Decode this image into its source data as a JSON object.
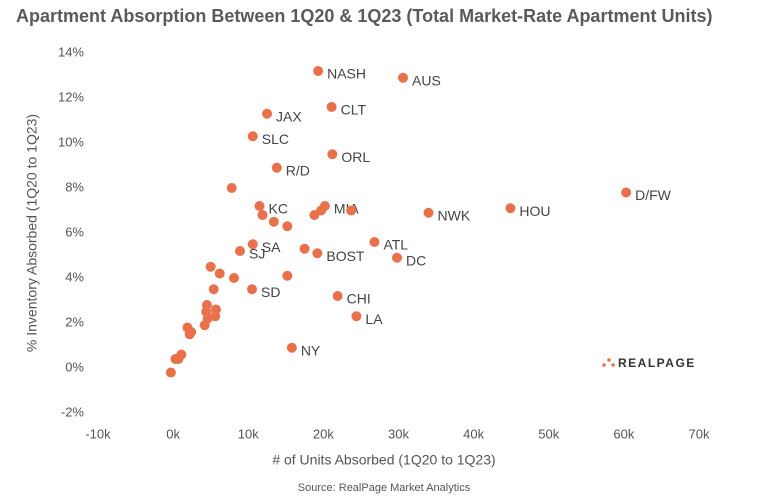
{
  "chart_data": {
    "type": "scatter",
    "title": "Apartment Absorption Between 1Q20 & 1Q23 (Total Market-Rate Apartment Units)",
    "x_label": "# of Units Absorbed (1Q20 to 1Q23)",
    "y_label": "% Inventory Absorbed (1Q20 to 1Q23)",
    "source": "Source: RealPage Market Analytics",
    "logo": "REALPAGE",
    "color": "#e8704a",
    "xlim": [
      -10000,
      70000
    ],
    "xticks": [
      {
        "value": -10000,
        "label": "-10k"
      },
      {
        "value": 0,
        "label": "0k"
      },
      {
        "value": 10000,
        "label": "10k"
      },
      {
        "value": 20000,
        "label": "20k"
      },
      {
        "value": 30000,
        "label": "30k"
      },
      {
        "value": 40000,
        "label": "40k"
      },
      {
        "value": 50000,
        "label": "50k"
      },
      {
        "value": 60000,
        "label": "60k"
      },
      {
        "value": 70000,
        "label": "70k"
      }
    ],
    "ylim": [
      -2,
      14
    ],
    "yticks": [
      {
        "value": -2,
        "label": "-2%"
      },
      {
        "value": 0,
        "label": "0%"
      },
      {
        "value": 2,
        "label": "2%"
      },
      {
        "value": 4,
        "label": "4%"
      },
      {
        "value": 6,
        "label": "6%"
      },
      {
        "value": 8,
        "label": "8%"
      },
      {
        "value": 10,
        "label": "10%"
      },
      {
        "value": 12,
        "label": "12%"
      },
      {
        "value": 14,
        "label": "14%"
      }
    ],
    "x": [
      19300,
      30600,
      12500,
      21100,
      10600,
      21200,
      13800,
      60300,
      44900,
      34000,
      11500,
      20200,
      26800,
      29800,
      19200,
      10600,
      8900,
      10500,
      21900,
      24400,
      15800,
      7800,
      11900,
      13400,
      15200,
      18800,
      19700,
      23700,
      17500,
      15200,
      5000,
      6200,
      8100,
      5400,
      4500,
      4400,
      5700,
      5600,
      4600,
      4200,
      1900,
      2400,
      2200,
      1100,
      700,
      300,
      -300
    ],
    "values": [
      13.2,
      12.9,
      11.3,
      11.6,
      10.3,
      9.5,
      8.9,
      7.8,
      7.1,
      6.9,
      7.2,
      7.2,
      5.6,
      4.9,
      5.1,
      5.5,
      5.2,
      3.5,
      3.2,
      2.3,
      0.9,
      8.0,
      6.8,
      6.5,
      6.3,
      6.8,
      7.0,
      7.0,
      5.3,
      4.1,
      4.5,
      4.2,
      4.0,
      3.5,
      2.8,
      2.5,
      2.6,
      2.3,
      2.2,
      1.9,
      1.8,
      1.6,
      1.5,
      0.6,
      0.4,
      0.4,
      -0.2
    ],
    "point_labels": [
      "NASH",
      "AUS",
      "JAX",
      "CLT",
      "SLC",
      "ORL",
      "R/D",
      "D/FW",
      "HOU",
      "NWK",
      "KC",
      "MIA",
      "ATL",
      "DC",
      "BOST",
      "SA",
      "SJ",
      "SD",
      "CHI",
      "LA",
      "NY",
      null,
      null,
      null,
      null,
      null,
      null,
      null,
      null,
      null,
      null,
      null,
      null,
      null,
      null,
      null,
      null,
      null,
      null,
      null,
      null,
      null,
      null,
      null,
      null,
      null,
      null
    ]
  }
}
